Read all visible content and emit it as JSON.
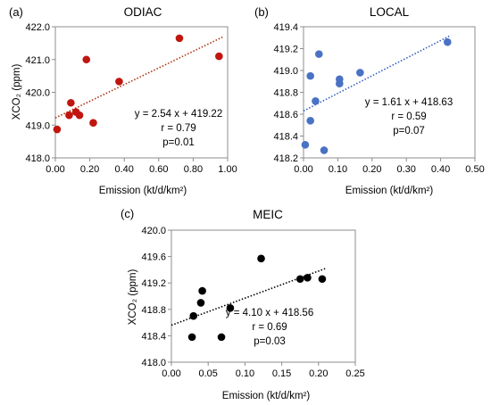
{
  "chart_data": [
    {
      "panel": "(a)",
      "title": "ODIAC",
      "type": "scatter",
      "xlabel": "Emission (kt/d/km²)",
      "ylabel": "XCO₂ (ppm)",
      "xlim": [
        0.0,
        1.0
      ],
      "ylim": [
        418.0,
        422.0
      ],
      "x_ticks": [
        "0.00",
        "0.20",
        "0.40",
        "0.60",
        "0.80",
        "1.00"
      ],
      "y_ticks": [
        "418.0",
        "419.0",
        "420.0",
        "421.0",
        "422.0"
      ],
      "grid": false,
      "marker_color": "#c0160f",
      "trend_color": "#b03010",
      "x": [
        0.01,
        0.08,
        0.09,
        0.12,
        0.14,
        0.18,
        0.22,
        0.37,
        0.72,
        0.95
      ],
      "y": [
        418.87,
        419.3,
        419.68,
        419.4,
        419.3,
        421.0,
        419.07,
        420.33,
        421.65,
        421.1
      ],
      "fit": {
        "slope": 2.54,
        "intercept": 419.22
      },
      "annotations": [
        "y = 2.54 x + 419.22",
        "r = 0.79",
        "p=0.01"
      ]
    },
    {
      "panel": "(b)",
      "title": "LOCAL",
      "type": "scatter",
      "xlabel": "Emission (kt/d/km²)",
      "ylabel": "",
      "xlim": [
        0.0,
        0.5
      ],
      "ylim": [
        418.2,
        419.4
      ],
      "x_ticks": [
        "0.00",
        "0.10",
        "0.20",
        "0.30",
        "0.40",
        "0.50"
      ],
      "y_ticks": [
        "418.2",
        "418.4",
        "418.6",
        "418.8",
        "419.0",
        "419.2",
        "419.4"
      ],
      "grid": false,
      "marker_color": "#4a72c4",
      "trend_color": "#3060c0",
      "x": [
        0.005,
        0.02,
        0.02,
        0.035,
        0.045,
        0.06,
        0.105,
        0.105,
        0.165,
        0.42
      ],
      "y": [
        418.32,
        418.54,
        418.95,
        418.72,
        419.15,
        418.27,
        418.92,
        418.88,
        418.98,
        419.26
      ],
      "fit": {
        "slope": 1.61,
        "intercept": 418.63
      },
      "annotations": [
        "y = 1.61 x + 418.63",
        "r = 0.59",
        "p=0.07"
      ]
    },
    {
      "panel": "(c)",
      "title": "MEIC",
      "type": "scatter",
      "xlabel": "Emission (kt/d/km²)",
      "ylabel": "XCO₂ (ppm)",
      "xlim": [
        0.0,
        0.25
      ],
      "ylim": [
        418.0,
        420.0
      ],
      "x_ticks": [
        "0.00",
        "0.05",
        "0.10",
        "0.15",
        "0.20",
        "0.25"
      ],
      "y_ticks": [
        "418.0",
        "418.4",
        "418.8",
        "419.2",
        "419.6",
        "420.0"
      ],
      "grid": false,
      "marker_color": "#000000",
      "trend_color": "#000000",
      "x": [
        0.028,
        0.03,
        0.04,
        0.042,
        0.068,
        0.08,
        0.122,
        0.175,
        0.185,
        0.205
      ],
      "y": [
        418.38,
        418.7,
        418.9,
        419.08,
        418.38,
        418.82,
        419.57,
        419.26,
        419.28,
        419.26
      ],
      "fit": {
        "slope": 4.1,
        "intercept": 418.56
      },
      "annotations": [
        "y = 4.10 x + 418.56",
        "r = 0.69",
        "p=0.03"
      ]
    }
  ]
}
